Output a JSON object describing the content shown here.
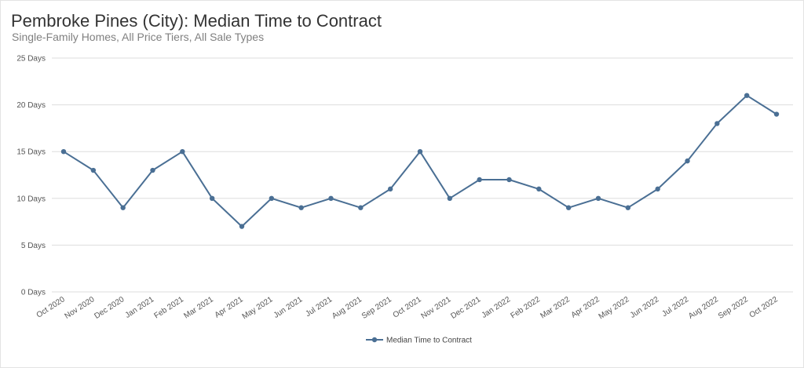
{
  "header": {
    "title": "Pembroke Pines (City): Median Time to Contract",
    "subtitle": "Single-Family Homes, All Price Tiers, All Sale Types"
  },
  "colors": {
    "series": "#4a6f94",
    "grid": "#dddddd",
    "axis_text": "#555555"
  },
  "chart_data": {
    "type": "line",
    "title": "Pembroke Pines (City): Median Time to Contract",
    "subtitle": "Single-Family Homes, All Price Tiers, All Sale Types",
    "xlabel": "",
    "ylabel": "",
    "ylim": [
      0,
      25
    ],
    "yticks": [
      "0 Days",
      "5 Days",
      "10 Days",
      "15 Days",
      "20 Days",
      "25 Days"
    ],
    "ytick_values": [
      0,
      5,
      10,
      15,
      20,
      25
    ],
    "grid": "horizontal",
    "legend_position": "bottom-center",
    "categories": [
      "Oct 2020",
      "Nov 2020",
      "Dec 2020",
      "Jan 2021",
      "Feb 2021",
      "Mar 2021",
      "Apr 2021",
      "May 2021",
      "Jun 2021",
      "Jul 2021",
      "Aug 2021",
      "Sep 2021",
      "Oct 2021",
      "Nov 2021",
      "Dec 2021",
      "Jan 2022",
      "Feb 2022",
      "Mar 2022",
      "Apr 2022",
      "May 2022",
      "Jun 2022",
      "Jul 2022",
      "Aug 2022",
      "Sep 2022",
      "Oct 2022"
    ],
    "series": [
      {
        "name": "Median Time to Contract",
        "values": [
          15,
          13,
          9,
          13,
          15,
          10,
          7,
          10,
          9,
          10,
          9,
          11,
          15,
          10,
          12,
          12,
          11,
          9,
          10,
          9,
          11,
          14,
          18,
          21,
          19
        ]
      }
    ]
  }
}
